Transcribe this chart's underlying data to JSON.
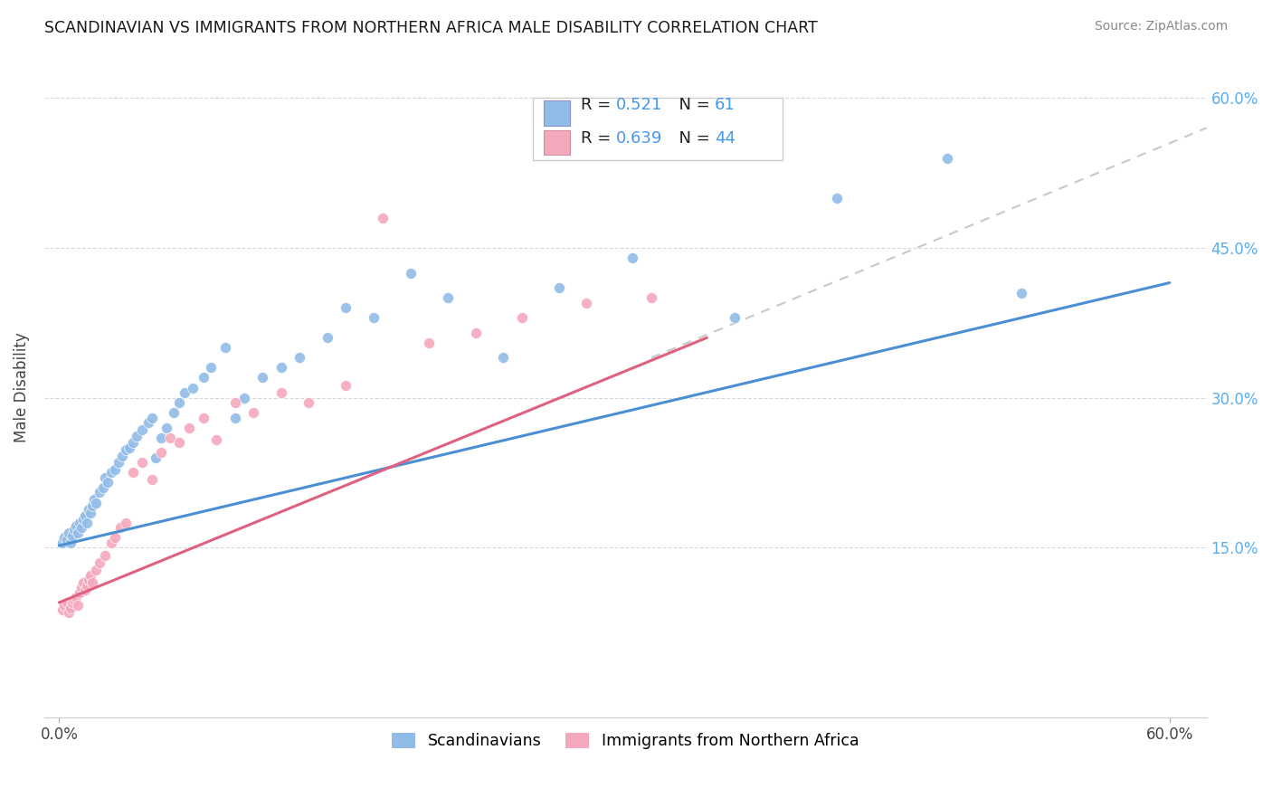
{
  "title": "SCANDINAVIAN VS IMMIGRANTS FROM NORTHERN AFRICA MALE DISABILITY CORRELATION CHART",
  "source": "Source: ZipAtlas.com",
  "ylabel": "Male Disability",
  "xlim": [
    -0.008,
    0.62
  ],
  "ylim": [
    -0.02,
    0.64
  ],
  "xtick_values": [
    0.0,
    0.6
  ],
  "xtick_labels": [
    "0.0%",
    "60.0%"
  ],
  "ytick_values": [
    0.15,
    0.3,
    0.45,
    0.6
  ],
  "ytick_labels": [
    "15.0%",
    "30.0%",
    "45.0%",
    "60.0%"
  ],
  "legend1_R": "0.521",
  "legend1_N": "61",
  "legend2_R": "0.639",
  "legend2_N": "44",
  "blue_color": "#92bce8",
  "pink_color": "#f4a8bc",
  "trend_blue": "#4a8fd4",
  "trend_pink": "#e06080",
  "trend_gray_color": "#c8c8c8",
  "blue_line_start_x": 0.0,
  "blue_line_start_y": 0.152,
  "blue_line_end_x": 0.6,
  "blue_line_end_y": 0.415,
  "pink_line_start_x": 0.0,
  "pink_line_start_y": 0.095,
  "pink_line_end_x": 0.35,
  "pink_line_end_y": 0.36,
  "gray_line_start_x": 0.32,
  "gray_line_start_y": 0.34,
  "gray_line_end_x": 0.62,
  "gray_line_end_y": 0.57,
  "scan_x": [
    0.002,
    0.003,
    0.004,
    0.005,
    0.006,
    0.007,
    0.008,
    0.009,
    0.01,
    0.011,
    0.012,
    0.013,
    0.014,
    0.015,
    0.016,
    0.017,
    0.018,
    0.019,
    0.02,
    0.022,
    0.024,
    0.025,
    0.026,
    0.028,
    0.03,
    0.032,
    0.034,
    0.036,
    0.038,
    0.04,
    0.042,
    0.045,
    0.048,
    0.05,
    0.052,
    0.055,
    0.058,
    0.062,
    0.065,
    0.068,
    0.072,
    0.078,
    0.082,
    0.09,
    0.095,
    0.1,
    0.11,
    0.12,
    0.13,
    0.145,
    0.155,
    0.17,
    0.19,
    0.21,
    0.24,
    0.27,
    0.31,
    0.365,
    0.42,
    0.48,
    0.52
  ],
  "scan_y": [
    0.155,
    0.16,
    0.158,
    0.165,
    0.155,
    0.162,
    0.168,
    0.172,
    0.165,
    0.175,
    0.17,
    0.178,
    0.182,
    0.175,
    0.188,
    0.185,
    0.192,
    0.198,
    0.195,
    0.205,
    0.21,
    0.22,
    0.215,
    0.225,
    0.228,
    0.235,
    0.242,
    0.248,
    0.25,
    0.255,
    0.262,
    0.268,
    0.275,
    0.28,
    0.24,
    0.26,
    0.27,
    0.285,
    0.295,
    0.305,
    0.31,
    0.32,
    0.33,
    0.35,
    0.28,
    0.3,
    0.32,
    0.33,
    0.34,
    0.36,
    0.39,
    0.38,
    0.425,
    0.4,
    0.34,
    0.41,
    0.44,
    0.38,
    0.5,
    0.54,
    0.405
  ],
  "imm_x": [
    0.002,
    0.003,
    0.004,
    0.005,
    0.006,
    0.007,
    0.008,
    0.009,
    0.01,
    0.011,
    0.012,
    0.013,
    0.014,
    0.015,
    0.016,
    0.017,
    0.018,
    0.02,
    0.022,
    0.025,
    0.028,
    0.03,
    0.033,
    0.036,
    0.04,
    0.045,
    0.05,
    0.055,
    0.06,
    0.065,
    0.07,
    0.078,
    0.085,
    0.095,
    0.105,
    0.12,
    0.135,
    0.155,
    0.175,
    0.2,
    0.225,
    0.25,
    0.285,
    0.32
  ],
  "imm_y": [
    0.088,
    0.092,
    0.095,
    0.085,
    0.09,
    0.095,
    0.098,
    0.1,
    0.092,
    0.105,
    0.11,
    0.115,
    0.108,
    0.112,
    0.118,
    0.122,
    0.115,
    0.128,
    0.135,
    0.142,
    0.155,
    0.16,
    0.17,
    0.175,
    0.225,
    0.235,
    0.218,
    0.245,
    0.26,
    0.255,
    0.27,
    0.28,
    0.258,
    0.295,
    0.285,
    0.305,
    0.295,
    0.312,
    0.48,
    0.355,
    0.365,
    0.38,
    0.395,
    0.4
  ]
}
